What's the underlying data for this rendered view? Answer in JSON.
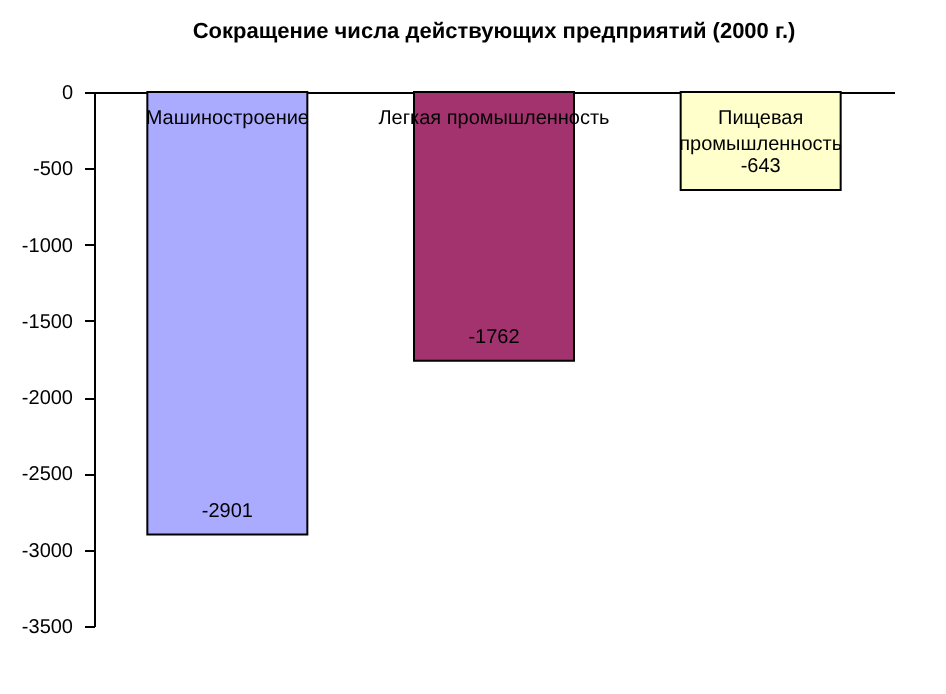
{
  "chart_data": {
    "type": "bar",
    "title": "Сокращение числа действующих предприятий (2000 г.)",
    "categories": [
      "Машиностроение",
      "Легкая промышленность",
      "Пищевая промышленность"
    ],
    "values": [
      -2901,
      -1762,
      -643
    ],
    "colors": [
      "#aaaaff",
      "#a3336e",
      "#ffffcc"
    ],
    "ylim": [
      -3500,
      0
    ],
    "yticks": [
      -3500,
      -3000,
      -2500,
      -2000,
      -1500,
      -1000,
      -500,
      0
    ],
    "data_labels": true,
    "grid": false,
    "legend": false
  }
}
